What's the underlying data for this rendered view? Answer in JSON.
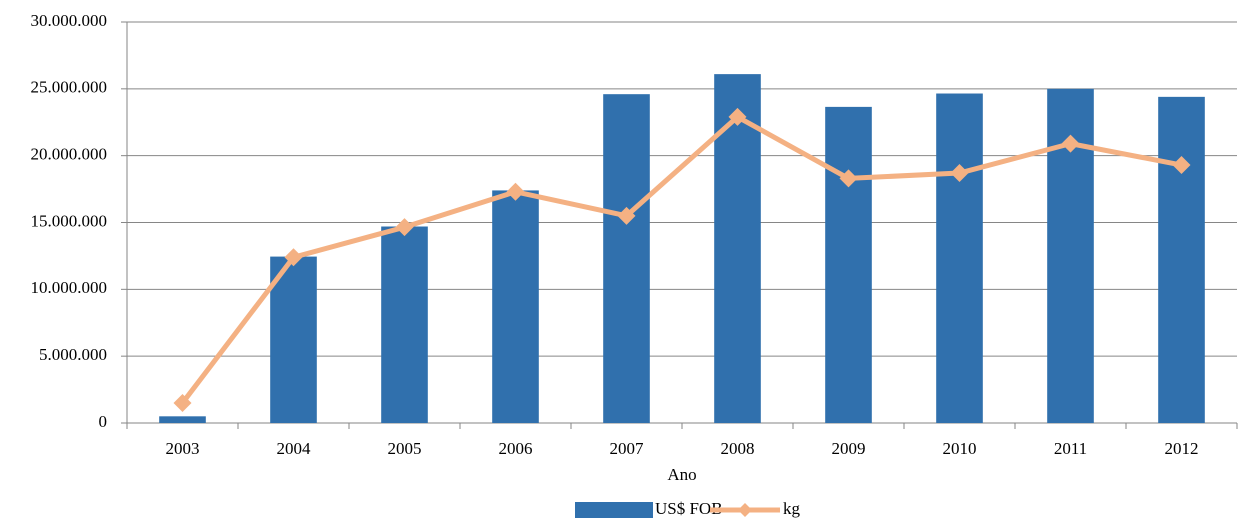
{
  "chart_data": {
    "type": "bar",
    "x_label": "Ano",
    "categories": [
      "2003",
      "2004",
      "2005",
      "2006",
      "2007",
      "2008",
      "2009",
      "2010",
      "2011",
      "2012"
    ],
    "series": [
      {
        "name": "US$ FOB",
        "type": "bar",
        "color": "#3070ad",
        "values": [
          500000,
          12450000,
          14700000,
          17400000,
          24600000,
          26100000,
          23650000,
          24650000,
          25000000,
          24400000
        ]
      },
      {
        "name": "kg",
        "type": "line",
        "color": "#f4b183",
        "values": [
          1500000,
          12400000,
          14650000,
          17300000,
          15500000,
          22900000,
          18300000,
          18700000,
          20900000,
          19300000
        ]
      }
    ],
    "ylim": [
      0,
      30000000
    ],
    "yticks": [
      {
        "value": 0,
        "label": "0"
      },
      {
        "value": 5000000,
        "label": "5.000.000"
      },
      {
        "value": 10000000,
        "label": "10.000.000"
      },
      {
        "value": 15000000,
        "label": "15.000.000"
      },
      {
        "value": 20000000,
        "label": "20.000.000"
      },
      {
        "value": 25000000,
        "label": "25.000.000"
      },
      {
        "value": 30000000,
        "label": "30.000.000"
      }
    ],
    "grid": true,
    "legend": "bottom"
  }
}
